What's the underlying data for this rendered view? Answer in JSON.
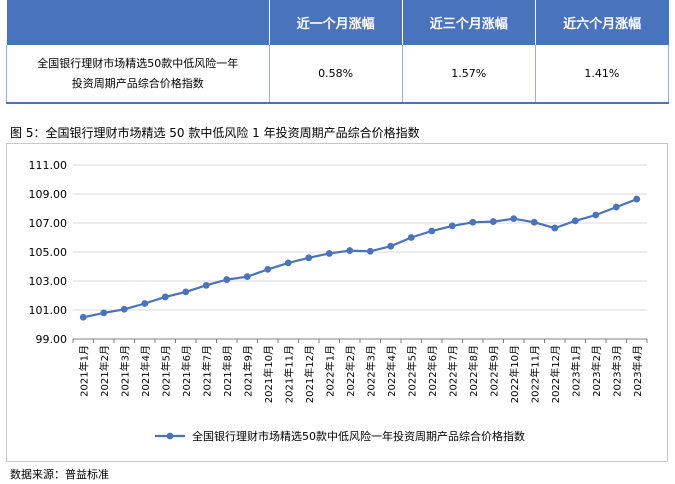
{
  "table": {
    "headers": [
      "",
      "近一个月涨幅",
      "近三个月涨幅",
      "近六个月涨幅"
    ],
    "row": {
      "name_line1": "全国银行理财市场精选50款中低风险一年",
      "name_line2": "投资周期产品综合价格指数",
      "m1": "0.58%",
      "m3": "1.57%",
      "m6": "1.41%"
    }
  },
  "figure_title": "图 5：全国银行理财市场精选 50 款中低风险 1 年投资周期产品综合价格指数",
  "source": "数据来源：普益标准",
  "colors": {
    "accent": "#4a73be",
    "line": "#4a73be",
    "grid": "#d9d9d9"
  },
  "chart_data": {
    "type": "line",
    "categories": [
      "2021年1月",
      "2021年2月",
      "2021年3月",
      "2021年4月",
      "2021年5月",
      "2021年6月",
      "2021年7月",
      "2021年8月",
      "2021年9月",
      "2021年10月",
      "2021年11月",
      "2021年12月",
      "2022年1月",
      "2022年2月",
      "2022年3月",
      "2022年4月",
      "2022年5月",
      "2022年6月",
      "2022年7月",
      "2022年8月",
      "2022年9月",
      "2022年10月",
      "2022年11月",
      "2022年12月",
      "2023年1月",
      "2023年2月",
      "2023年3月",
      "2023年4月"
    ],
    "series": [
      {
        "name": "全国银行理财市场精选50款中低风险一年投资周期产品综合价格指数",
        "values": [
          100.5,
          100.8,
          101.05,
          101.45,
          101.9,
          102.25,
          102.7,
          103.1,
          103.3,
          103.8,
          104.25,
          104.6,
          104.9,
          105.1,
          105.05,
          105.4,
          106.0,
          106.45,
          106.8,
          107.05,
          107.1,
          107.3,
          107.05,
          106.65,
          107.15,
          107.55,
          108.1,
          108.65
        ]
      }
    ],
    "ylim": [
      99.0,
      111.0
    ],
    "yticks": [
      "99.00",
      "101.00",
      "103.00",
      "105.00",
      "107.00",
      "109.00",
      "111.00"
    ],
    "grid": true,
    "legend": "bottom"
  }
}
